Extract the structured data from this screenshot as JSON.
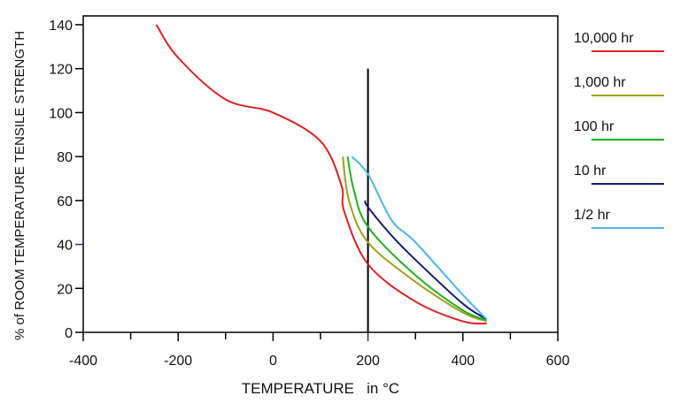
{
  "chart_data": {
    "type": "line",
    "title": "",
    "xlabel": "TEMPERATURE   in °C",
    "ylabel": "% of ROOM TEMPERATURE TENSILE STRENGTH",
    "xlim": [
      -400,
      600
    ],
    "ylim": [
      0,
      140
    ],
    "xticks": [
      -400,
      -200,
      0,
      200,
      400,
      600
    ],
    "yticks": [
      0,
      20,
      40,
      60,
      80,
      100,
      120,
      140
    ],
    "grid": false,
    "legend_position": "right",
    "reference_line": {
      "x": 200,
      "y_top": 120,
      "color": "#000000"
    },
    "highlight_ticks": {
      "x": 200,
      "y": 40,
      "color": "#2a2aa0"
    },
    "series": [
      {
        "name": "10,000 hr",
        "color": "#e02020",
        "points": [
          [
            -246,
            140
          ],
          [
            -200,
            125
          ],
          [
            -100,
            106
          ],
          [
            0,
            100
          ],
          [
            100,
            87
          ],
          [
            144,
            67
          ],
          [
            150,
            55
          ],
          [
            200,
            31
          ],
          [
            300,
            14
          ],
          [
            400,
            5
          ],
          [
            450,
            4
          ]
        ]
      },
      {
        "name": "1,000 hr",
        "color": "#a0a020",
        "points": [
          [
            147,
            80
          ],
          [
            160,
            60
          ],
          [
            200,
            41
          ],
          [
            300,
            23
          ],
          [
            400,
            9
          ],
          [
            450,
            5
          ]
        ]
      },
      {
        "name": "100 hr",
        "color": "#20b020",
        "points": [
          [
            157,
            80
          ],
          [
            170,
            65
          ],
          [
            200,
            48
          ],
          [
            300,
            26
          ],
          [
            400,
            10
          ],
          [
            450,
            5.5
          ]
        ]
      },
      {
        "name": "10 hr",
        "color": "#1a1a7a",
        "points": [
          [
            194,
            60
          ],
          [
            200,
            57
          ],
          [
            250,
            44
          ],
          [
            300,
            33
          ],
          [
            400,
            13
          ],
          [
            450,
            6
          ]
        ]
      },
      {
        "name": "1/2 hr",
        "color": "#4ab8e8",
        "points": [
          [
            166,
            80
          ],
          [
            200,
            72
          ],
          [
            250,
            51
          ],
          [
            300,
            41
          ],
          [
            400,
            17
          ],
          [
            450,
            6
          ]
        ]
      }
    ]
  }
}
